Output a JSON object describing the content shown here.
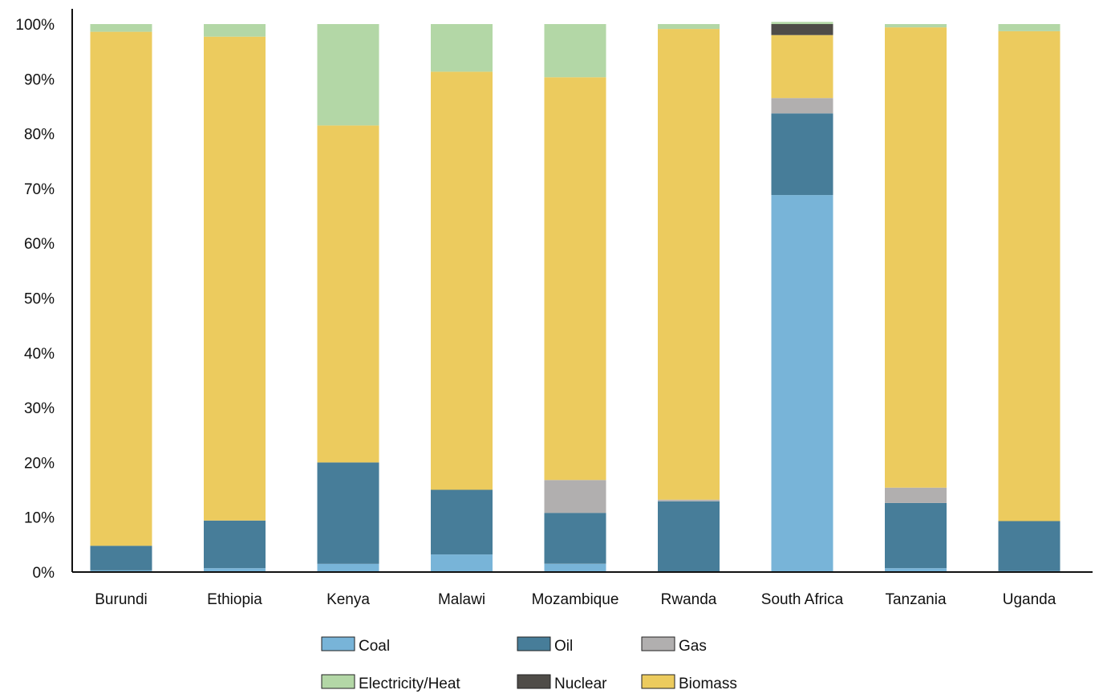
{
  "chart_data": {
    "type": "bar",
    "stacked": true,
    "title": "",
    "xlabel": "",
    "ylabel": "",
    "ylim": [
      0,
      100
    ],
    "y_ticks": [
      "0%",
      "10%",
      "20%",
      "30%",
      "40%",
      "50%",
      "60%",
      "70%",
      "80%",
      "90%",
      "100%"
    ],
    "grid": false,
    "legend_position": "bottom",
    "categories": [
      "Burundi",
      "Ethiopia",
      "Kenya",
      "Malawi",
      "Mozambique",
      "Rwanda",
      "South Africa",
      "Tanzania",
      "Uganda"
    ],
    "series": [
      {
        "name": "Coal",
        "color": "#78b4d8",
        "values": [
          0.3,
          0.7,
          1.5,
          3.2,
          1.5,
          0.1,
          68.8,
          0.7,
          0.2
        ]
      },
      {
        "name": "Oil",
        "color": "#477d99",
        "values": [
          4.5,
          8.7,
          18.5,
          11.8,
          9.3,
          12.8,
          14.9,
          11.9,
          9.1
        ]
      },
      {
        "name": "Gas",
        "color": "#b1afaf",
        "values": [
          0.0,
          0.0,
          0.0,
          0.0,
          6.0,
          0.3,
          2.8,
          2.8,
          0.0
        ]
      },
      {
        "name": "Biomass",
        "color": "#eccb5e",
        "values": [
          93.8,
          88.3,
          61.5,
          76.3,
          73.5,
          85.9,
          11.5,
          84.0,
          89.4
        ]
      },
      {
        "name": "Nuclear",
        "color": "#4f4c48",
        "values": [
          0.0,
          0.0,
          0.0,
          0.0,
          0.0,
          0.0,
          2.0,
          0.0,
          0.0
        ]
      },
      {
        "name": "Electricity/Heat",
        "color": "#b3d7a6",
        "values": [
          1.4,
          2.3,
          18.5,
          8.7,
          9.7,
          0.9,
          0.4,
          0.6,
          1.3
        ]
      }
    ],
    "legend_order": [
      "Coal",
      "Oil",
      "Gas",
      "Electricity/Heat",
      "Nuclear",
      "Biomass"
    ]
  }
}
